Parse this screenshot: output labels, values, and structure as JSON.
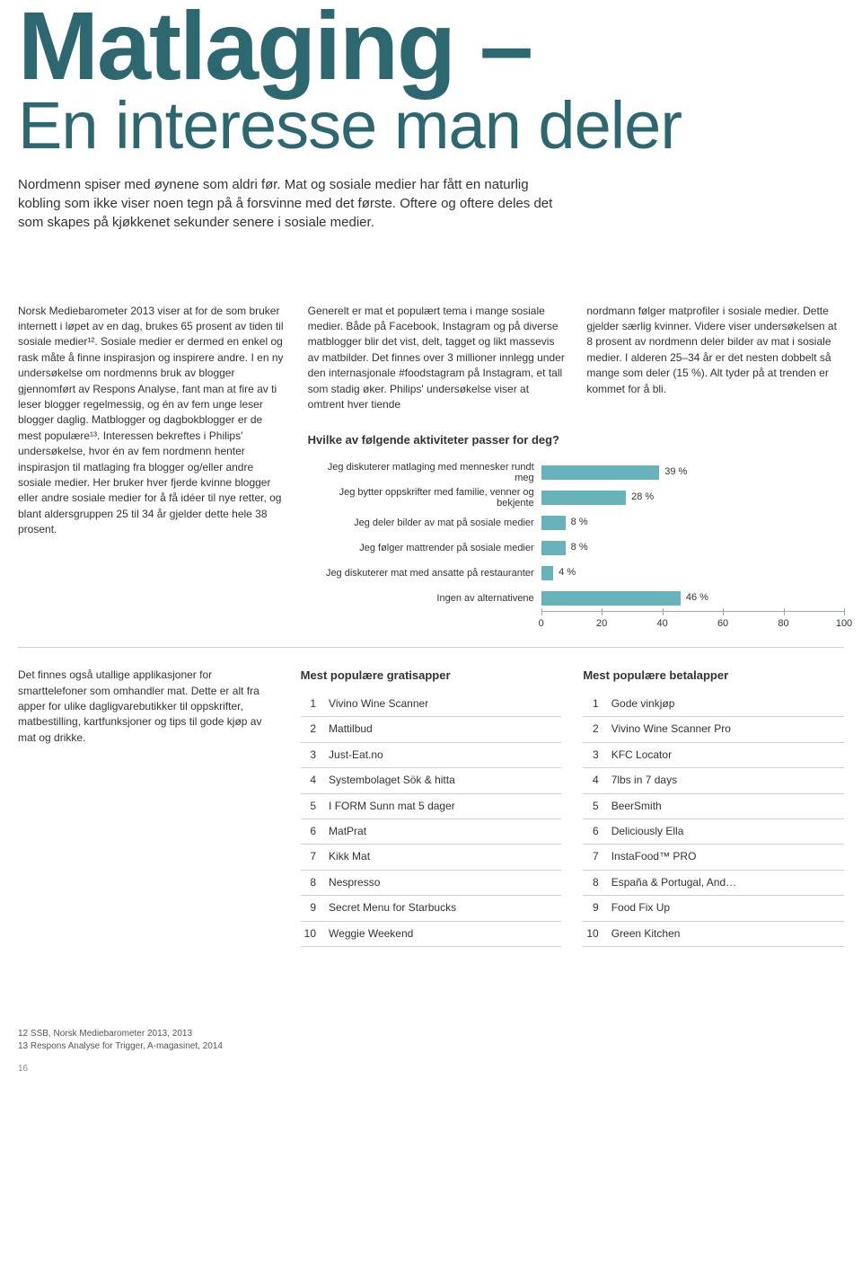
{
  "title_bold": "Matlaging –",
  "title_light": "En interesse man deler",
  "intro": "Nordmenn spiser med øynene som aldri før. Mat og sosiale medier har fått en naturlig kobling som ikke viser noen tegn på å forsvinne med det første. Oftere og oftere deles det som skapes på kjøkkenet sekunder senere i sosiale medier.",
  "colA": "Norsk Mediebarometer 2013 viser at for de som bruker internett i løpet av en dag, brukes 65 prosent av tiden til sosiale medier¹². Sosiale medier er dermed en enkel og rask måte å finne inspirasjon og inspirere andre. I en ny undersøkelse om nordmenns bruk av blogger gjennomført av Respons Analyse, fant man at fire av ti leser blogger regelmessig, og én av fem unge leser blogger daglig. Matblogger og dagbokblog­ger er de mest populære¹³. Interessen bekreftes i Philips' undersøkelse, hvor én av fem nordmenn henter inspirasjon til matlaging fra blogger og/eller andre sosiale medier. Her bruker hver fjerde kvinne blogger eller andre sosiale medier for å få idéer til nye retter, og blant aldersgruppen 25 til 34 år gjelder dette hele 38 prosent.",
  "colB": "Generelt er mat et populært tema i mange sosiale medier. Både på Facebook, Instagram og på diverse matblogger blir det vist, delt, tagget og likt massevis av matbil­der. Det finnes over 3 millioner innlegg under den internasjonale #foodstagram på Instagram, et tall som stadig øker. Philips' undersøkelse viser at omtrent hver tiende",
  "colC": "nordmann følger matprofiler i sosiale medier. Dette gjelder særlig kvinner. Videre viser undersøkelsen at 8 prosent av nordmenn deler bilder av mat i sosiale medier. I alderen 25–34 år er det nesten dobbelt så mange som deler (15 %). Alt tyder på at trenden er kommet for å bli.",
  "chart": {
    "type": "bar",
    "title": "Hvilke av følgende aktiviteter passer for deg?",
    "xlim": [
      0,
      100
    ],
    "xtick_step": 20,
    "bar_color": "#68b3bb",
    "grid_color": "#eef2f2",
    "background_color": "#ffffff",
    "label_fontsize": 11,
    "items": [
      {
        "label": "Jeg diskuterer matlaging med mennesker rundt meg",
        "value": 39,
        "pct": "39 %"
      },
      {
        "label": "Jeg bytter oppskrifter med familie, venner og bekjente",
        "value": 28,
        "pct": "28 %"
      },
      {
        "label": "Jeg deler bilder av mat på sosiale medier",
        "value": 8,
        "pct": "8 %"
      },
      {
        "label": "Jeg følger mattrender på sosiale medier",
        "value": 8,
        "pct": "8 %"
      },
      {
        "label": "Jeg diskuterer mat med ansatte på restauranter",
        "value": 4,
        "pct": "4 %"
      },
      {
        "label": "Ingen av alternativene",
        "value": 46,
        "pct": "46 %"
      }
    ]
  },
  "apps_intro": "Det finnes også utallige applikasjoner for smarttelefoner som omhandler mat. Dette er alt fra apper for ulike dagligvarebutikker til oppskrifter, matbestilling, kartfunksjo­ner og tips til gode kjøp av mat og drikke.",
  "apps_free": {
    "title": "Mest populære gratisapper",
    "rows": [
      {
        "rank": "1",
        "name": "Vivino Wine Scanner"
      },
      {
        "rank": "2",
        "name": "Mattilbud"
      },
      {
        "rank": "3",
        "name": "Just-Eat.no"
      },
      {
        "rank": "4",
        "name": "Systembolaget Sök & hitta"
      },
      {
        "rank": "5",
        "name": "I FORM Sunn mat 5 dager"
      },
      {
        "rank": "6",
        "name": "MatPrat"
      },
      {
        "rank": "7",
        "name": "Kikk Mat"
      },
      {
        "rank": "8",
        "name": "Nespresso"
      },
      {
        "rank": "9",
        "name": "Secret Menu for Starbucks"
      },
      {
        "rank": "10",
        "name": "Weggie Weekend"
      }
    ]
  },
  "apps_paid": {
    "title": "Mest populære betalapper",
    "rows": [
      {
        "rank": "1",
        "name": "Gode vinkjøp"
      },
      {
        "rank": "2",
        "name": "Vivino Wine Scanner Pro"
      },
      {
        "rank": "3",
        "name": "KFC Locator"
      },
      {
        "rank": "4",
        "name": "7lbs in 7 days"
      },
      {
        "rank": "5",
        "name": "BeerSmith"
      },
      {
        "rank": "6",
        "name": "Deliciously Ella"
      },
      {
        "rank": "7",
        "name": "InstaFood™ PRO"
      },
      {
        "rank": "8",
        "name": "España & Portugal, And…"
      },
      {
        "rank": "9",
        "name": "Food Fix Up"
      },
      {
        "rank": "10",
        "name": "Green Kitchen"
      }
    ]
  },
  "footnote12": "12  SSB, Norsk Mediebarometer 2013, 2013",
  "footnote13": "13  Respons Analyse for Trigger, A-magasinet, 2014",
  "pagenum": "16"
}
